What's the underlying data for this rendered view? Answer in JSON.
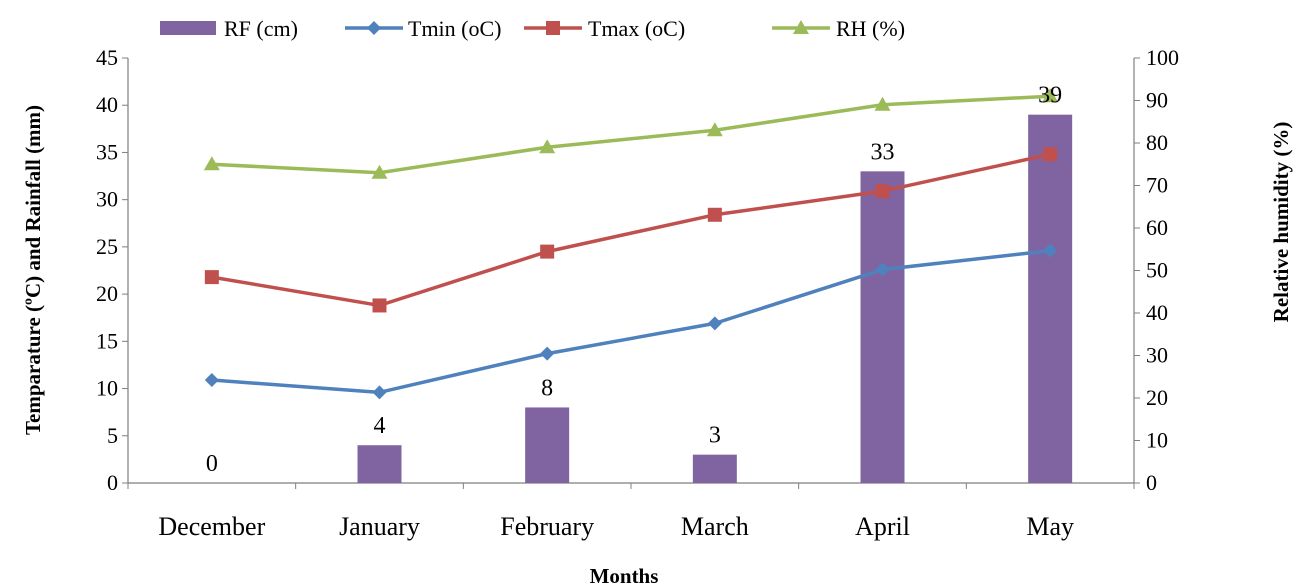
{
  "chart_data": {
    "type": "bar",
    "categories": [
      "December",
      "January",
      "February",
      "March",
      "April",
      "May"
    ],
    "xlabel": "Months",
    "ylabel": "Temparature (ºC) and Rainfall (mm)",
    "y2label": "Relative humidity (%)",
    "ylim": [
      0,
      45
    ],
    "y2lim": [
      0,
      100
    ],
    "yticks": [
      0,
      5,
      10,
      15,
      20,
      25,
      30,
      35,
      40,
      45
    ],
    "y2ticks": [
      0,
      10,
      20,
      30,
      40,
      50,
      60,
      70,
      80,
      90,
      100
    ],
    "grid": false,
    "legend_position": "top",
    "series": [
      {
        "name": "RF (cm)",
        "kind": "bar",
        "axis": "left",
        "color": "#8064a2",
        "values": [
          0,
          4,
          8,
          3,
          33,
          39
        ],
        "data_labels": [
          "0",
          "4",
          "8",
          "3",
          "33",
          "39"
        ]
      },
      {
        "name": "Tmin (oC)",
        "kind": "line",
        "axis": "left",
        "marker": "diamond",
        "color": "#4f81bd",
        "values": [
          10.9,
          9.6,
          13.7,
          16.9,
          22.6,
          24.6
        ]
      },
      {
        "name": "Tmax (oC)",
        "kind": "line",
        "axis": "left",
        "marker": "square",
        "color": "#c0504d",
        "values": [
          21.8,
          18.8,
          24.5,
          28.4,
          30.9,
          34.8
        ]
      },
      {
        "name": "RH (%)",
        "kind": "line",
        "axis": "right",
        "marker": "triangle",
        "color": "#9bbb59",
        "values": [
          75,
          73,
          79,
          83,
          89,
          91
        ]
      }
    ]
  }
}
